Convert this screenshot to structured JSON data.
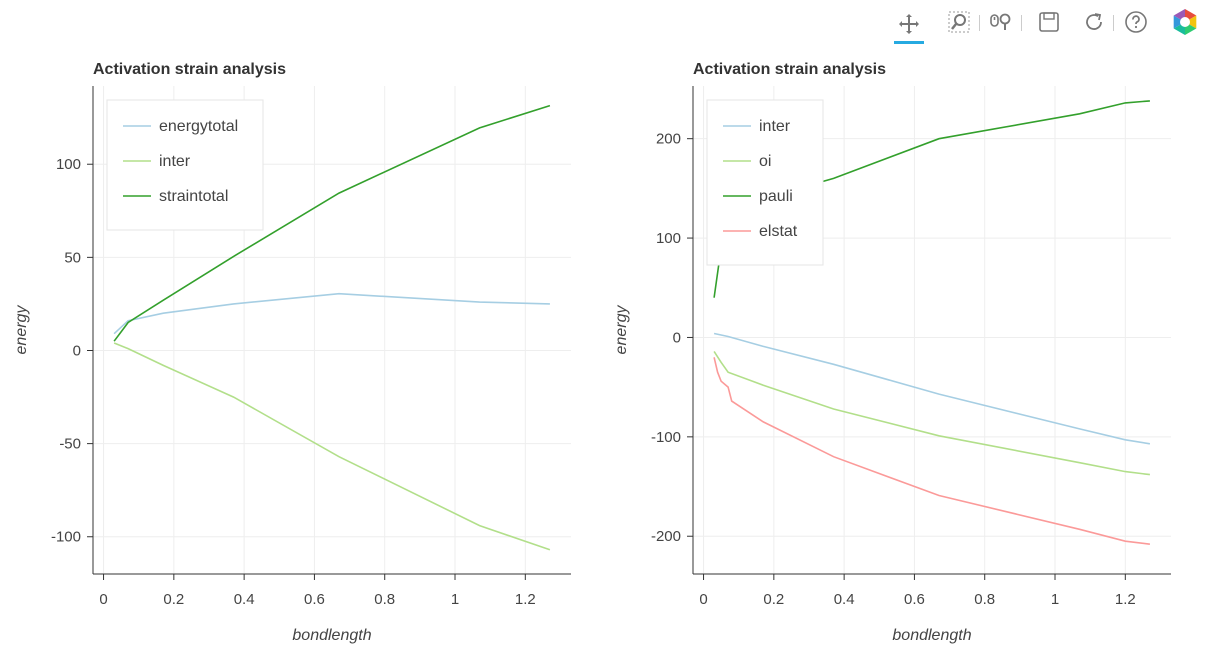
{
  "toolbar": {
    "tools": [
      {
        "name": "pan-tool",
        "icon": "pan-icon",
        "active": true
      },
      {
        "name": "box-zoom-tool",
        "icon": "box-zoom-icon",
        "active": false
      },
      {
        "name": "wheel-zoom-tool",
        "icon": "wheel-zoom-icon",
        "active": false
      },
      {
        "name": "save-tool",
        "icon": "save-icon",
        "active": false
      },
      {
        "name": "reset-tool",
        "icon": "reset-icon",
        "active": false
      },
      {
        "name": "help-tool",
        "icon": "help-icon",
        "active": false
      }
    ],
    "logo": "bokeh-logo-icon"
  },
  "chart_data": [
    {
      "type": "line",
      "title": "Activation strain analysis",
      "xlabel": "bondlength",
      "ylabel": "energy",
      "xlim": [
        -0.03,
        1.33
      ],
      "ylim": [
        -120,
        142
      ],
      "xticks": [
        0,
        0.2,
        0.4,
        0.6,
        0.8,
        1,
        1.2
      ],
      "xtick_labels": [
        "0",
        "0.2",
        "0.4",
        "0.6",
        "0.8",
        "1",
        "1.2"
      ],
      "yticks": [
        -100,
        -50,
        0,
        50,
        100
      ],
      "ytick_labels": [
        "-100",
        "-50",
        "0",
        "50",
        "100"
      ],
      "grid": true,
      "legend_position": "top-left",
      "series": [
        {
          "name": "energytotal",
          "color": "#a6cee3",
          "x": [
            0.03,
            0.07,
            0.17,
            0.37,
            0.67,
            1.07,
            1.27
          ],
          "y": [
            9,
            16,
            20,
            25,
            30.5,
            26,
            25
          ]
        },
        {
          "name": "inter",
          "color": "#b2df8a",
          "x": [
            0.03,
            0.07,
            0.17,
            0.37,
            0.67,
            1.07,
            1.27
          ],
          "y": [
            4,
            1,
            -8,
            -25,
            -57,
            -94,
            -107
          ]
        },
        {
          "name": "straintotal",
          "color": "#33a02c",
          "x": [
            0.03,
            0.05,
            0.07,
            0.17,
            0.37,
            0.67,
            1.07,
            1.27
          ],
          "y": [
            5,
            10,
            15,
            27,
            50.5,
            84.5,
            119.5,
            131.5
          ]
        }
      ]
    },
    {
      "type": "line",
      "title": "Activation strain analysis",
      "xlabel": "bondlength",
      "ylabel": "energy",
      "xlim": [
        -0.03,
        1.33
      ],
      "ylim": [
        -238,
        253
      ],
      "xticks": [
        0,
        0.2,
        0.4,
        0.6,
        0.8,
        1,
        1.2
      ],
      "xtick_labels": [
        "0",
        "0.2",
        "0.4",
        "0.6",
        "0.8",
        "1",
        "1.2"
      ],
      "yticks": [
        -200,
        -100,
        0,
        100,
        200
      ],
      "ytick_labels": [
        "-200",
        "-100",
        "0",
        "100",
        "200"
      ],
      "grid": true,
      "legend_position": "top-left",
      "series": [
        {
          "name": "inter",
          "color": "#a6cee3",
          "x": [
            0.03,
            0.07,
            0.17,
            0.37,
            0.67,
            1.07,
            1.2,
            1.27
          ],
          "y": [
            4,
            1,
            -9,
            -27,
            -57,
            -92,
            -103,
            -107
          ]
        },
        {
          "name": "oi",
          "color": "#b2df8a",
          "x": [
            0.03,
            0.05,
            0.07,
            0.17,
            0.37,
            0.67,
            1.07,
            1.2,
            1.27
          ],
          "y": [
            -14,
            -25,
            -35,
            -48,
            -72,
            -99,
            -126,
            -135,
            -138
          ]
        },
        {
          "name": "pauli",
          "color": "#33a02c",
          "x": [
            0.03,
            0.05,
            0.07,
            0.17,
            0.37,
            0.67,
            1.07,
            1.2,
            1.27
          ],
          "y": [
            40,
            90,
            115,
            140,
            160,
            200,
            225,
            236,
            238
          ]
        },
        {
          "name": "elstat",
          "color": "#fb9a99",
          "x": [
            0.03,
            0.04,
            0.05,
            0.07,
            0.08,
            0.17,
            0.37,
            0.67,
            1.07,
            1.2,
            1.27
          ],
          "y": [
            -20,
            -35,
            -44,
            -50,
            -64,
            -85,
            -120,
            -159,
            -193,
            -205,
            -208
          ]
        }
      ]
    }
  ]
}
